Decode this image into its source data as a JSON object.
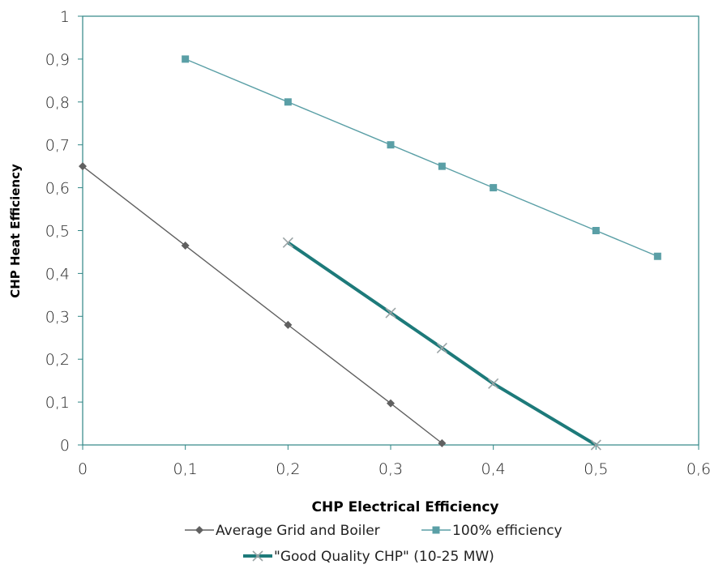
{
  "chart_data": {
    "type": "line",
    "xlabel": "CHP Electrical Efficiency",
    "ylabel": "CHP Heat Efficiency",
    "xlim": [
      0,
      0.6
    ],
    "ylim": [
      0,
      1
    ],
    "x_ticks": [
      "0",
      "0,1",
      "0,2",
      "0,3",
      "0,4",
      "0,5",
      "0,6"
    ],
    "y_ticks": [
      "0",
      "0,1",
      "0,2",
      "0,3",
      "0,4",
      "0,5",
      "0,6",
      "0,7",
      "0,8",
      "0,9",
      "1"
    ],
    "grid": false,
    "legend_position": "bottom",
    "series": [
      {
        "name": "Average Grid and Boiler",
        "color": "#606060",
        "marker": "diamond",
        "x": [
          0,
          0.1,
          0.2,
          0.3,
          0.35
        ],
        "y": [
          0.65,
          0.465,
          0.28,
          0.097,
          0.004
        ]
      },
      {
        "name": "100% efficiency",
        "color": "#5a9fa6",
        "marker": "square",
        "x": [
          0.1,
          0.2,
          0.3,
          0.35,
          0.4,
          0.5,
          0.56
        ],
        "y": [
          0.9,
          0.8,
          0.7,
          0.65,
          0.6,
          0.5,
          0.44
        ]
      },
      {
        "name": "\"Good Quality CHP\" (10-25 MW)",
        "color": "#1d7a7a",
        "marker": "x",
        "x": [
          0.2,
          0.3,
          0.35,
          0.4,
          0.5
        ],
        "y": [
          0.472,
          0.308,
          0.226,
          0.143,
          0
        ]
      }
    ]
  }
}
